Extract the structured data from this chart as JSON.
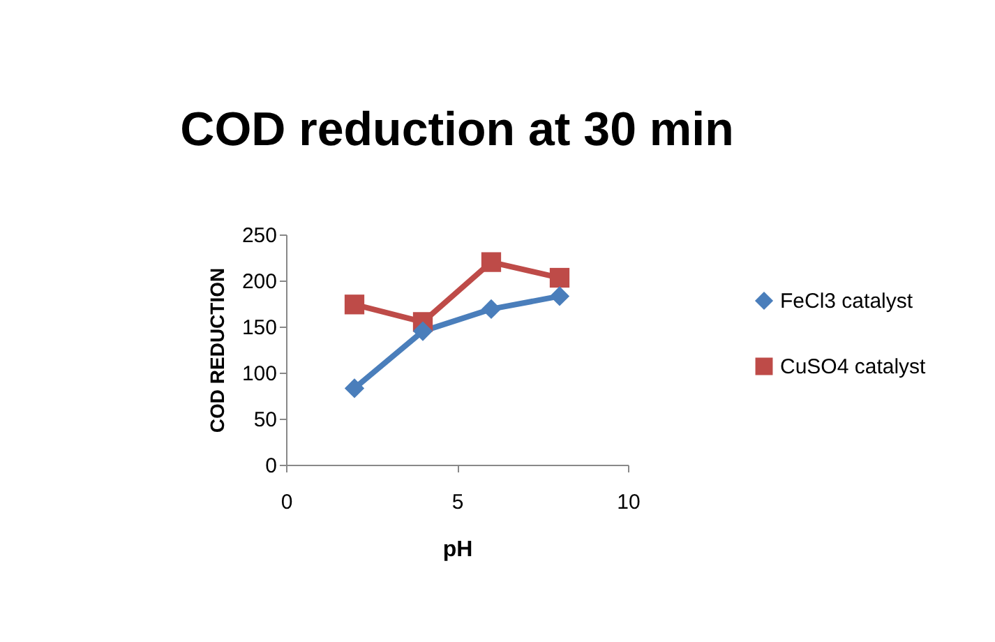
{
  "chart_data": {
    "type": "line",
    "title": "COD reduction at 30 min",
    "xlabel": "pH",
    "ylabel": "COD REDUCTION",
    "x": [
      2,
      4,
      6,
      8
    ],
    "series": [
      {
        "name": "FeCl3 catalyst",
        "color": "#4a7ebb",
        "marker": "diamond",
        "values": [
          83,
          145,
          169,
          183
        ]
      },
      {
        "name": "CuSO4 catalyst",
        "color": "#be4b48",
        "marker": "square",
        "values": [
          174,
          155,
          220,
          203
        ]
      }
    ],
    "xlim": [
      0,
      10
    ],
    "xticks": [
      0,
      5,
      10
    ],
    "ylim": [
      0,
      250
    ],
    "yticks": [
      0,
      50,
      100,
      150,
      200,
      250
    ],
    "grid": false,
    "legend": "right",
    "line_style": "solid"
  }
}
